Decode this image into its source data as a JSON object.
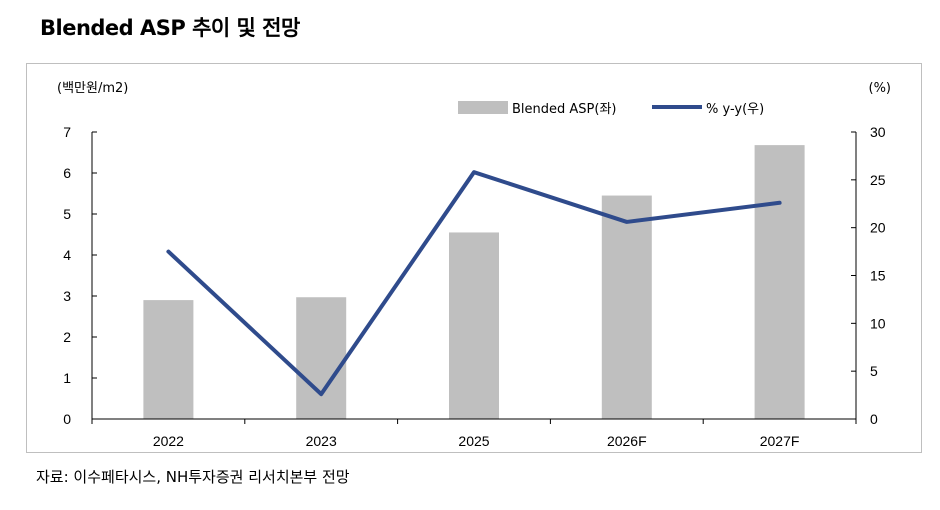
{
  "title": "Blended ASP 추이 및 전망",
  "source": "자료: 이수페타시스, NH투자증권 리서치본부 전망",
  "colors": {
    "bar": "#bfbfbf",
    "line": "#2f4b8c",
    "frame": "#bfbfbf",
    "axis": "#000000"
  },
  "chart_data": {
    "type": "bar",
    "categories": [
      "2022",
      "2023",
      "2025",
      "2026F",
      "2027F"
    ],
    "series": [
      {
        "name": "Blended ASP(좌)",
        "type": "bar",
        "axis": "left",
        "values": [
          2.9,
          2.97,
          4.55,
          5.45,
          6.68
        ]
      },
      {
        "name": "% y-y(우)",
        "type": "line",
        "axis": "right",
        "values": [
          17.5,
          2.6,
          25.8,
          20.6,
          22.6
        ]
      }
    ],
    "y_left": {
      "label": "(백만원/m2)",
      "lim": [
        0,
        7
      ],
      "ticks": [
        "0",
        "1",
        "2",
        "3",
        "4",
        "5",
        "6",
        "7"
      ]
    },
    "y_right": {
      "label": "(%)",
      "lim": [
        0,
        30
      ],
      "ticks": [
        "0",
        "5",
        "10",
        "15",
        "20",
        "25",
        "30"
      ]
    },
    "legend": "top-center",
    "grid": false
  }
}
